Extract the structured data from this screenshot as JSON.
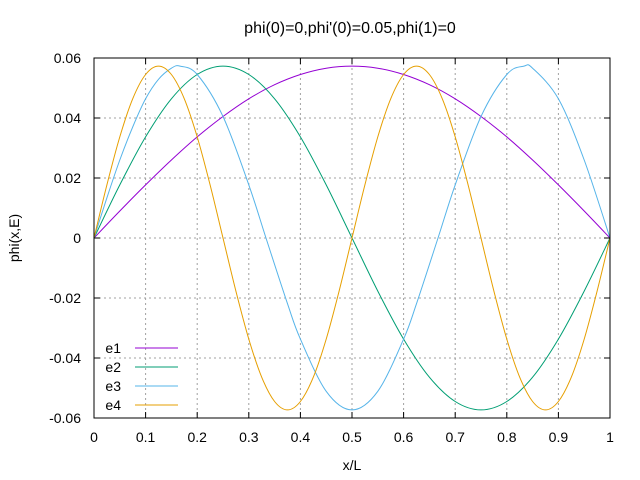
{
  "chart_data": {
    "type": "line",
    "title": "phi(0)=0,phi'(0)=0.05,phi(1)=0",
    "xlabel": "x/L",
    "ylabel": "phi(x,E)",
    "xlim": [
      0,
      1
    ],
    "ylim": [
      -0.06,
      0.06
    ],
    "grid": true,
    "legend_position": "bottom-left",
    "x_ticks": [
      {
        "value": 0,
        "label": "0"
      },
      {
        "value": 0.1,
        "label": "0.1"
      },
      {
        "value": 0.2,
        "label": "0.2"
      },
      {
        "value": 0.3,
        "label": "0.3"
      },
      {
        "value": 0.4,
        "label": "0.4"
      },
      {
        "value": 0.5,
        "label": "0.5"
      },
      {
        "value": 0.6,
        "label": "0.6"
      },
      {
        "value": 0.7,
        "label": "0.7"
      },
      {
        "value": 0.8,
        "label": "0.8"
      },
      {
        "value": 0.9,
        "label": "0.9"
      },
      {
        "value": 1,
        "label": "1"
      }
    ],
    "y_ticks": [
      {
        "value": -0.06,
        "label": "-0.06"
      },
      {
        "value": -0.04,
        "label": "-0.04"
      },
      {
        "value": -0.02,
        "label": "-0.02"
      },
      {
        "value": 0,
        "label": "0"
      },
      {
        "value": 0.02,
        "label": "0.02"
      },
      {
        "value": 0.04,
        "label": "0.04"
      },
      {
        "value": 0.06,
        "label": "0.06"
      }
    ],
    "series": [
      {
        "name": "e1",
        "color": "#9400d3",
        "x": [
          0,
          0.05,
          0.1,
          0.15,
          0.2,
          0.25,
          0.3,
          0.35,
          0.4,
          0.45,
          0.5,
          0.55,
          0.6,
          0.65,
          0.7,
          0.75,
          0.8,
          0.85,
          0.9,
          0.95,
          1
        ],
        "y": [
          0,
          0.009,
          0.0177,
          0.026,
          0.0337,
          0.0405,
          0.0464,
          0.0511,
          0.0545,
          0.0566,
          0.0573,
          0.0566,
          0.0545,
          0.0511,
          0.0464,
          0.0405,
          0.0337,
          0.026,
          0.0177,
          0.009,
          0
        ]
      },
      {
        "name": "e2",
        "color": "#009e73",
        "x": [
          0,
          0.05,
          0.1,
          0.15,
          0.2,
          0.25,
          0.3,
          0.35,
          0.4,
          0.45,
          0.5,
          0.55,
          0.6,
          0.65,
          0.7,
          0.75,
          0.8,
          0.85,
          0.9,
          0.95,
          1
        ],
        "y": [
          0,
          0.0177,
          0.0337,
          0.0464,
          0.0545,
          0.0573,
          0.0545,
          0.0464,
          0.0337,
          0.0177,
          0,
          -0.0177,
          -0.0337,
          -0.0464,
          -0.0545,
          -0.0573,
          -0.0545,
          -0.0464,
          -0.0337,
          -0.0177,
          0
        ]
      },
      {
        "name": "e3",
        "color": "#56b4e9",
        "x": [
          0,
          0.025,
          0.05,
          0.075,
          0.1,
          0.125,
          0.15,
          0.1667,
          0.2,
          0.25,
          0.3,
          0.3333,
          0.375,
          0.4,
          0.45,
          0.5,
          0.55,
          0.6,
          0.625,
          0.6667,
          0.7,
          0.75,
          0.8,
          0.8333,
          0.85,
          0.9,
          0.95,
          1
        ],
        "y": [
          0,
          0.0134,
          0.026,
          0.037,
          0.0464,
          0.0529,
          0.0566,
          0.0573,
          0.0545,
          0.0405,
          0.0177,
          0,
          -0.0219,
          -0.0337,
          -0.0511,
          -0.0573,
          -0.0511,
          -0.0337,
          -0.0219,
          0,
          0.0177,
          0.0405,
          0.0545,
          0.0573,
          0.0566,
          0.0464,
          0.026,
          0
        ]
      },
      {
        "name": "e4",
        "color": "#e69f00",
        "x": [
          0,
          0.025,
          0.05,
          0.075,
          0.1,
          0.125,
          0.15,
          0.175,
          0.2,
          0.225,
          0.25,
          0.275,
          0.3,
          0.325,
          0.35,
          0.375,
          0.4,
          0.425,
          0.45,
          0.475,
          0.5,
          0.525,
          0.55,
          0.575,
          0.6,
          0.625,
          0.65,
          0.675,
          0.7,
          0.725,
          0.75,
          0.775,
          0.8,
          0.825,
          0.85,
          0.875,
          0.9,
          0.925,
          0.95,
          0.975,
          1
        ],
        "y": [
          0,
          0.0177,
          0.0337,
          0.0464,
          0.0545,
          0.0573,
          0.0545,
          0.0464,
          0.0337,
          0.0177,
          0,
          -0.0177,
          -0.0337,
          -0.0464,
          -0.0545,
          -0.0573,
          -0.0545,
          -0.0464,
          -0.0337,
          -0.0177,
          0,
          0.0177,
          0.0337,
          0.0464,
          0.0545,
          0.0573,
          0.0545,
          0.0464,
          0.0337,
          0.0177,
          0,
          -0.0177,
          -0.0337,
          -0.0464,
          -0.0545,
          -0.0573,
          -0.0545,
          -0.0464,
          -0.0337,
          -0.0177,
          0
        ]
      }
    ]
  }
}
